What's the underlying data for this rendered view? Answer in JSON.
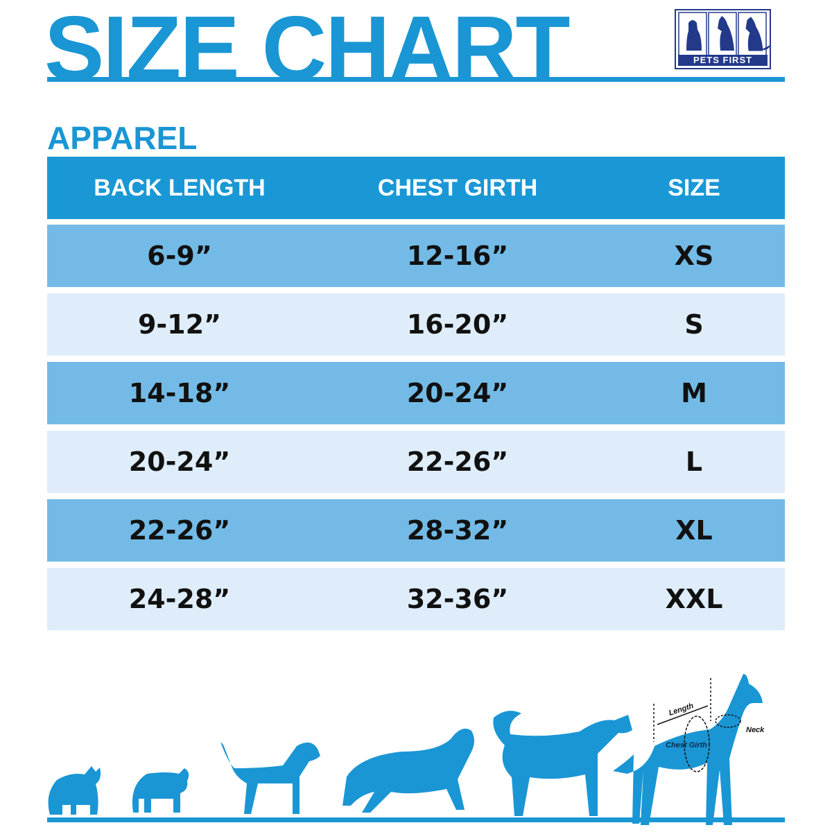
{
  "title": "SIZE CHART",
  "logo": {
    "text": "PETS FIRST"
  },
  "section": "APPAREL",
  "table": {
    "headers": [
      "BACK LENGTH",
      "CHEST GIRTH",
      "SIZE"
    ],
    "rows": [
      [
        "6-9”",
        "12-16”",
        "XS"
      ],
      [
        "9-12”",
        "16-20”",
        "S"
      ],
      [
        "14-18”",
        "20-24”",
        "M"
      ],
      [
        "20-24”",
        "22-26”",
        "L"
      ],
      [
        "22-26”",
        "28-32”",
        "XL"
      ],
      [
        "24-28”",
        "32-36”",
        "XXL"
      ]
    ]
  },
  "diagram": {
    "length": "Length",
    "chest": "Chest Girth",
    "neck": "Neck"
  },
  "colors": {
    "accent": "#1a96d4",
    "row_dark": "#73bbe6",
    "row_light": "#deedf9",
    "logo": "#233a8a"
  }
}
